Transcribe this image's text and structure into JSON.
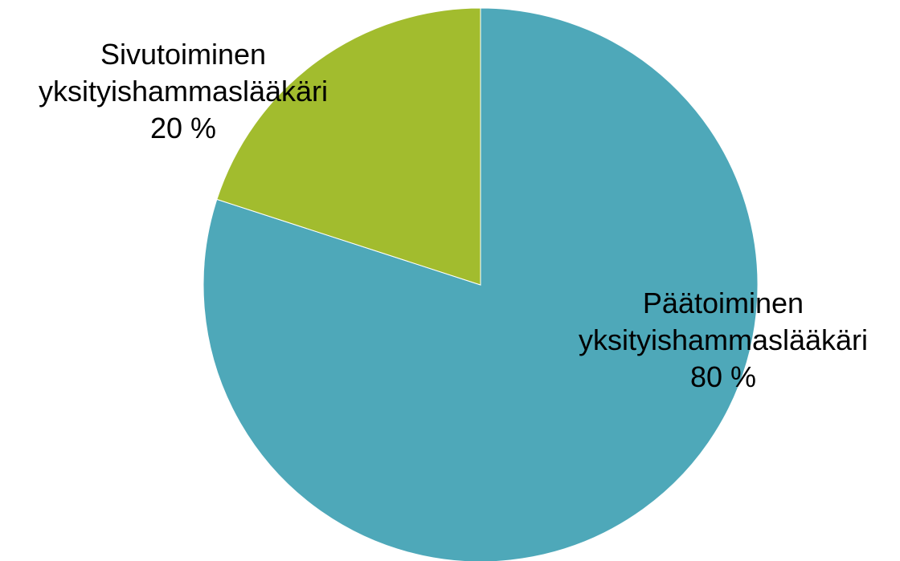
{
  "chart_data": {
    "type": "pie",
    "categories": [
      "Päätoiminen yksityishammaslääkäri",
      "Sivutoiminen yksityishammaslääkäri"
    ],
    "values": [
      80,
      20
    ],
    "value_labels": [
      "80 %",
      "20 %"
    ],
    "colors": [
      "#4ea8b9",
      "#a2bc2e"
    ]
  }
}
